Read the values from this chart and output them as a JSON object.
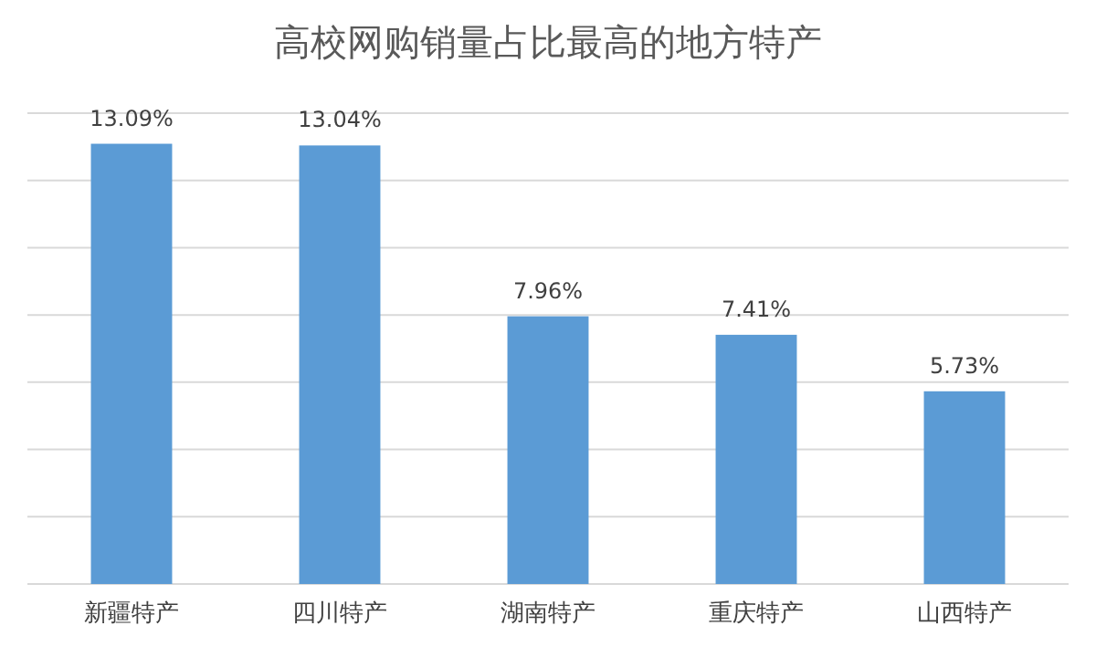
{
  "chart_data": {
    "type": "bar",
    "title": "高校网购销量占比最高的地方特产",
    "categories": [
      "新疆特产",
      "四川特产",
      "湖南特产",
      "重庆特产",
      "山西特产"
    ],
    "values": [
      13.09,
      13.04,
      7.96,
      7.41,
      5.73
    ],
    "value_labels": [
      "13.09%",
      "13.04%",
      "7.96%",
      "7.41%",
      "5.73%"
    ],
    "color": "#5b9bd5",
    "ylim": [
      0,
      14
    ],
    "yticks": [
      {
        "value": 0,
        "label": null
      },
      {
        "value": 2,
        "label": null
      },
      {
        "value": 4,
        "label": null
      },
      {
        "value": 6,
        "label": null
      },
      {
        "value": 8,
        "label": null
      },
      {
        "value": 10,
        "label": null
      },
      {
        "value": 12,
        "label": null
      },
      {
        "value": 14,
        "label": null
      }
    ],
    "grid": "y",
    "tick_labels": "x"
  }
}
